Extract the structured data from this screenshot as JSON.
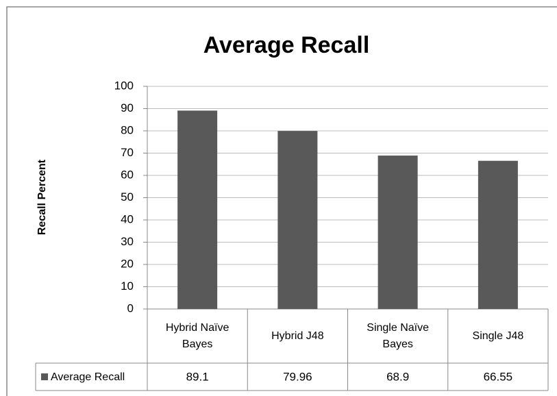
{
  "chart_data": {
    "type": "bar",
    "title": "Average Recall",
    "y_label": "Recall Percent",
    "categories": [
      "Hybrid Naïve Bayes",
      "Hybrid J48",
      "Single Naïve Bayes",
      "Single J48"
    ],
    "series": [
      {
        "name": "Average Recall",
        "color": "#595959",
        "values": [
          89.1,
          79.96,
          68.9,
          66.55
        ]
      }
    ],
    "ylim": [
      0,
      100
    ],
    "yticks": [
      0,
      10,
      20,
      30,
      40,
      50,
      60,
      70,
      80,
      90,
      100
    ],
    "grid": true,
    "legend": "data-table"
  }
}
